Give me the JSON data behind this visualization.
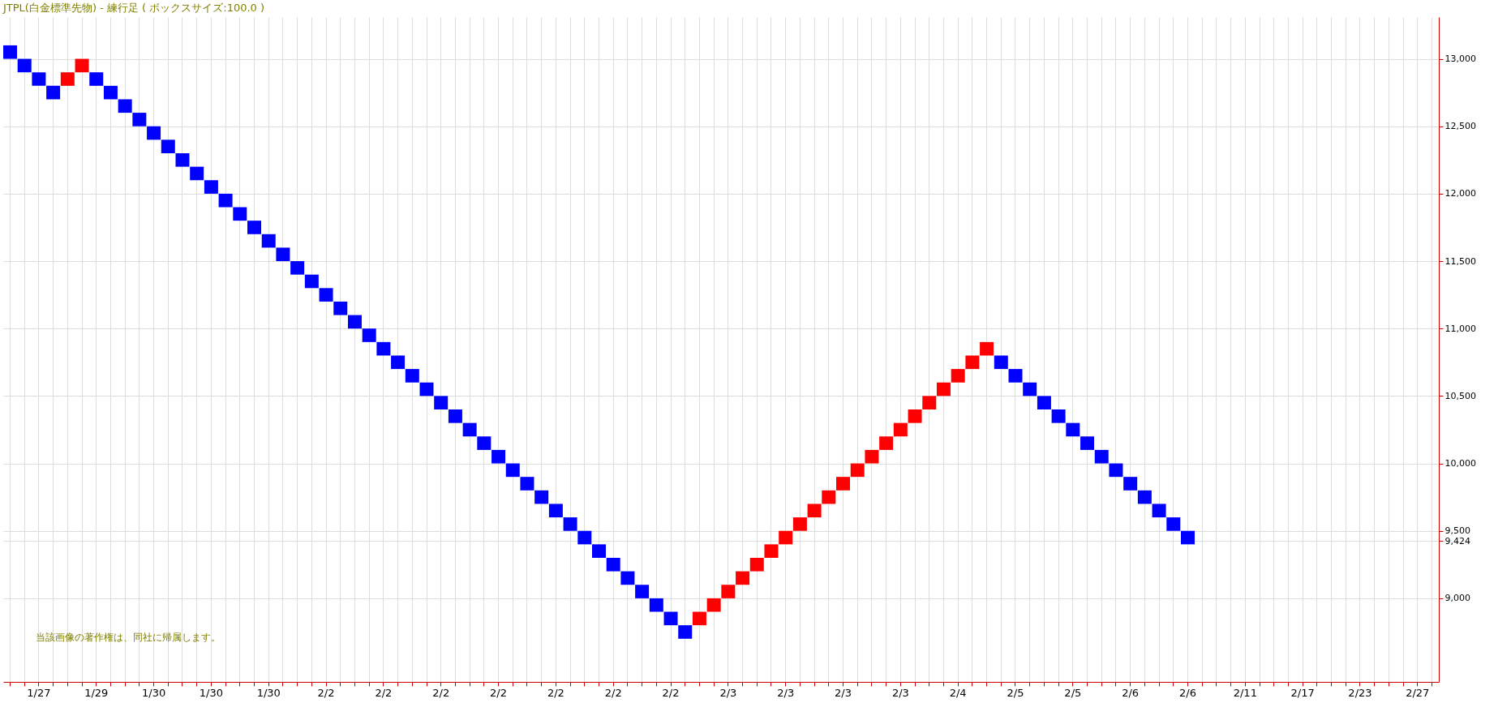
{
  "chart_data": {
    "type": "bar",
    "title": "JTPL(白金標準先物) - 練行足 ( ボックスサイズ:100.0 )",
    "categories": [
      null,
      null,
      "1/27",
      null,
      null,
      null,
      "1/29",
      null,
      null,
      null,
      "1/30",
      null,
      null,
      null,
      "1/30",
      null,
      null,
      null,
      "1/30",
      null,
      null,
      null,
      "2/2",
      null,
      null,
      null,
      "2/2",
      null,
      null,
      null,
      "2/2",
      null,
      null,
      null,
      "2/2",
      null,
      null,
      null,
      "2/2",
      null,
      null,
      null,
      "2/2",
      null,
      null,
      null,
      "2/2",
      null,
      null,
      null,
      "2/3",
      null,
      null,
      null,
      "2/3",
      null,
      null,
      null,
      "2/3",
      null,
      null,
      null,
      "2/3",
      null,
      null,
      null,
      "2/4",
      null,
      null,
      null,
      "2/5",
      null,
      null,
      null,
      "2/5",
      null,
      null,
      null,
      "2/6",
      null,
      null,
      null,
      "2/6",
      null,
      null,
      null,
      "2/11",
      null,
      null,
      null,
      "2/17",
      null,
      null,
      null,
      "2/23",
      null,
      null,
      null,
      "2/27",
      null
    ],
    "base": [
      13000,
      12900,
      12800,
      12700,
      12800,
      12900,
      12800,
      12700,
      12600,
      12500,
      12400,
      12300,
      12200,
      12100,
      12000,
      11900,
      11800,
      11700,
      11600,
      11500,
      11400,
      11300,
      11200,
      11100,
      11000,
      10900,
      10800,
      10700,
      10600,
      10500,
      10400,
      10300,
      10200,
      10100,
      10000,
      9900,
      9800,
      9700,
      9600,
      9500,
      9400,
      9300,
      9200,
      9100,
      9000,
      8900,
      8800,
      8700,
      8800,
      8900,
      9000,
      9100,
      9200,
      9300,
      9400,
      9500,
      9600,
      9700,
      9800,
      9900,
      10000,
      10100,
      10200,
      10300,
      10400,
      10500,
      10600,
      10700,
      10800,
      10700,
      10600,
      10500,
      10400,
      10300,
      10200,
      10100,
      10000,
      9900,
      9800,
      9700,
      9600,
      9500,
      9400,
      null,
      null,
      null,
      null,
      null,
      null,
      null,
      null,
      null,
      null,
      null,
      null,
      null,
      null,
      null,
      null,
      null
    ],
    "values": [
      100,
      100,
      100,
      100,
      100,
      100,
      100,
      100,
      100,
      100,
      100,
      100,
      100,
      100,
      100,
      100,
      100,
      100,
      100,
      100,
      100,
      100,
      100,
      100,
      100,
      100,
      100,
      100,
      100,
      100,
      100,
      100,
      100,
      100,
      100,
      100,
      100,
      100,
      100,
      100,
      100,
      100,
      100,
      100,
      100,
      100,
      100,
      100,
      100,
      100,
      100,
      100,
      100,
      100,
      100,
      100,
      100,
      100,
      100,
      100,
      100,
      100,
      100,
      100,
      100,
      100,
      100,
      100,
      100,
      100,
      100,
      100,
      100,
      100,
      100,
      100,
      100,
      100,
      100,
      100,
      100,
      100,
      100,
      null,
      null,
      null,
      null,
      null,
      null,
      null,
      null,
      null,
      null,
      null,
      null,
      null,
      null,
      null,
      null,
      null
    ],
    "colors": [
      "#0000ff",
      "#0000ff",
      "#0000ff",
      "#0000ff",
      "#ff0000",
      "#ff0000",
      "#0000ff",
      "#0000ff",
      "#0000ff",
      "#0000ff",
      "#0000ff",
      "#0000ff",
      "#0000ff",
      "#0000ff",
      "#0000ff",
      "#0000ff",
      "#0000ff",
      "#0000ff",
      "#0000ff",
      "#0000ff",
      "#0000ff",
      "#0000ff",
      "#0000ff",
      "#0000ff",
      "#0000ff",
      "#0000ff",
      "#0000ff",
      "#0000ff",
      "#0000ff",
      "#0000ff",
      "#0000ff",
      "#0000ff",
      "#0000ff",
      "#0000ff",
      "#0000ff",
      "#0000ff",
      "#0000ff",
      "#0000ff",
      "#0000ff",
      "#0000ff",
      "#0000ff",
      "#0000ff",
      "#0000ff",
      "#0000ff",
      "#0000ff",
      "#0000ff",
      "#0000ff",
      "#0000ff",
      "#ff0000",
      "#ff0000",
      "#ff0000",
      "#ff0000",
      "#ff0000",
      "#ff0000",
      "#ff0000",
      "#ff0000",
      "#ff0000",
      "#ff0000",
      "#ff0000",
      "#ff0000",
      "#ff0000",
      "#ff0000",
      "#ff0000",
      "#ff0000",
      "#ff0000",
      "#ff0000",
      "#ff0000",
      "#ff0000",
      "#ff0000",
      "#0000ff",
      "#0000ff",
      "#0000ff",
      "#0000ff",
      "#0000ff",
      "#0000ff",
      "#0000ff",
      "#0000ff",
      "#0000ff",
      "#0000ff",
      "#0000ff",
      "#0000ff",
      "#0000ff",
      "#0000ff",
      null,
      null,
      null,
      null,
      null,
      null,
      null,
      null,
      null,
      null,
      null,
      null,
      null,
      null,
      null,
      null,
      null
    ],
    "ylim": [
      8380,
      13310
    ],
    "yticks": [
      {
        "value": 9000,
        "label": "9,000"
      },
      {
        "value": 9424,
        "label": "9,424"
      },
      {
        "value": 9500,
        "label": "9,500"
      },
      {
        "value": 10000,
        "label": "10,000"
      },
      {
        "value": 10500,
        "label": "10,500"
      },
      {
        "value": 11000,
        "label": "11,000"
      },
      {
        "value": 11500,
        "label": "11,500"
      },
      {
        "value": 12000,
        "label": "12,000"
      },
      {
        "value": 12500,
        "label": "12,500"
      },
      {
        "value": 13000,
        "label": "13,000"
      }
    ],
    "grid": true,
    "annotations": [
      "当該画像の著作権は、同社に帰属します。"
    ]
  }
}
